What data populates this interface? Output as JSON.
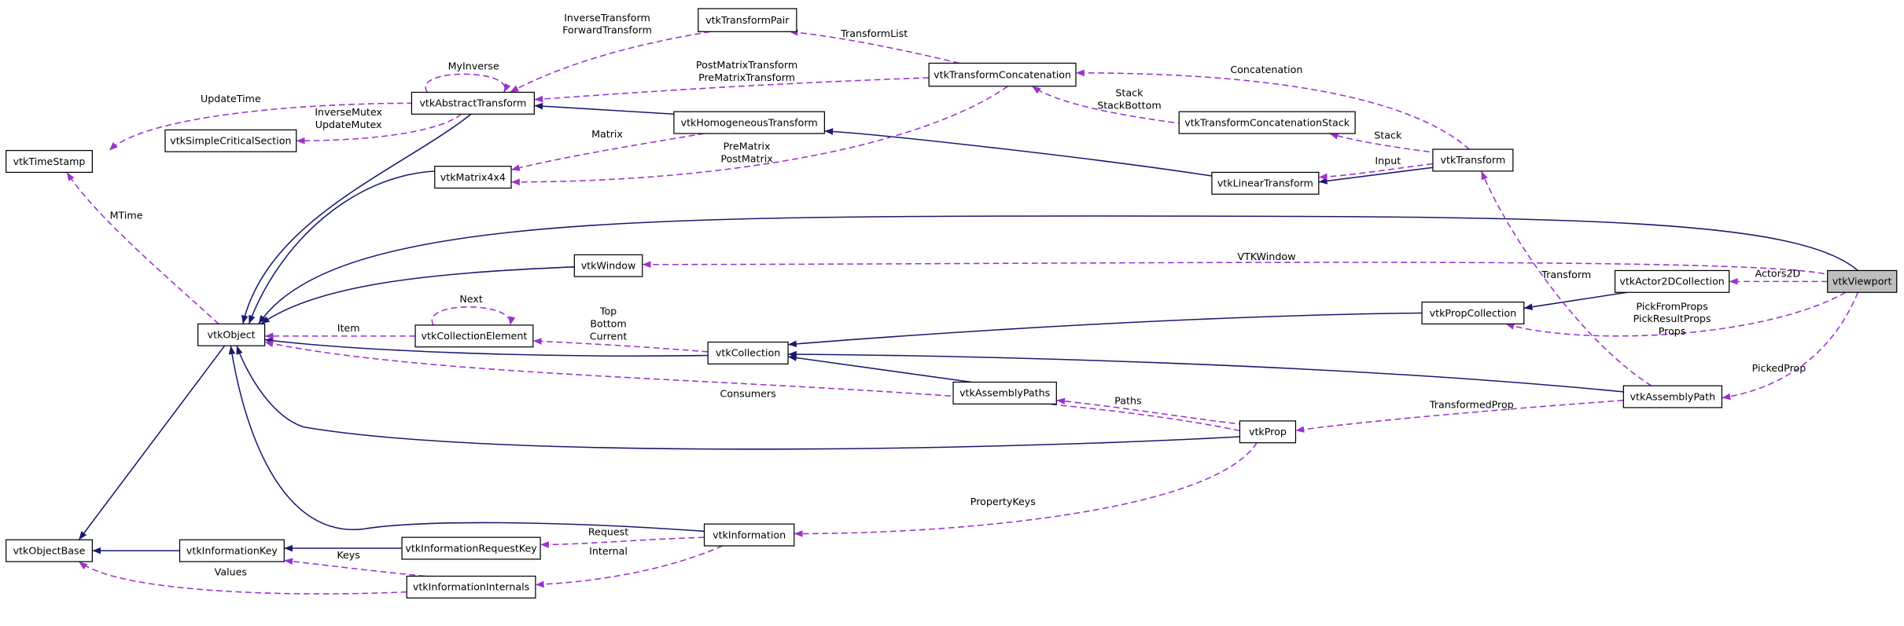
{
  "nodes": [
    "vtkTransformPair",
    "vtkTransformConcatenation",
    "vtkAbstractTransform",
    "vtkHomogeneousTransform",
    "vtkTransformConcatenationStack",
    "vtkSimpleCriticalSection",
    "vtkTimeStamp",
    "vtkTransform",
    "vtkMatrix4x4",
    "vtkLinearTransform",
    "vtkWindow",
    "vtkActor2DCollection",
    "vtkViewport",
    "vtkPropCollection",
    "vtkObject",
    "vtkCollectionElement",
    "vtkCollection",
    "vtkAssemblyPaths",
    "vtkAssemblyPath",
    "vtkProp",
    "vtkInformation",
    "vtkObjectBase",
    "vtkInformationKey",
    "vtkInformationRequestKey",
    "vtkInformationInternals"
  ],
  "edges": [
    {
      "labels": [
        "UpdateTime"
      ]
    },
    {
      "labels": [
        "MyInverse"
      ]
    },
    {
      "labels": [
        "InverseMutex",
        "UpdateMutex"
      ]
    },
    {
      "labels": [
        "InverseTransform",
        "ForwardTransform"
      ]
    },
    {
      "labels": [
        "PostMatrixTransform",
        "PreMatrixTransform"
      ]
    },
    {
      "labels": [
        "TransformList"
      ]
    },
    {
      "labels": [
        "Matrix"
      ]
    },
    {
      "labels": [
        "PreMatrix",
        "PostMatrix"
      ]
    },
    {
      "labels": [
        "Concatenation"
      ]
    },
    {
      "labels": [
        "Stack",
        "StackBottom"
      ]
    },
    {
      "labels": [
        "Stack"
      ]
    },
    {
      "labels": [
        "Input"
      ]
    },
    {
      "labels": [
        "VTKWindow"
      ]
    },
    {
      "labels": [
        "Actors2D"
      ]
    },
    {
      "labels": [
        "PickFromProps",
        "PickResultProps",
        "Props"
      ]
    },
    {
      "labels": [
        "PickedProp"
      ]
    },
    {
      "labels": [
        "Transform"
      ]
    },
    {
      "labels": [
        "TransformedProp"
      ]
    },
    {
      "labels": [
        "Next"
      ]
    },
    {
      "labels": [
        "Item"
      ]
    },
    {
      "labels": [
        "Top",
        "Bottom",
        "Current"
      ]
    },
    {
      "labels": [
        "Consumers"
      ]
    },
    {
      "labels": [
        "Paths"
      ]
    },
    {
      "labels": [
        "PropertyKeys"
      ]
    },
    {
      "labels": [
        "Request"
      ]
    },
    {
      "labels": [
        "Internal"
      ]
    },
    {
      "labels": [
        "Keys"
      ]
    },
    {
      "labels": [
        "Values"
      ]
    },
    {
      "labels": [
        "MTime"
      ]
    }
  ]
}
